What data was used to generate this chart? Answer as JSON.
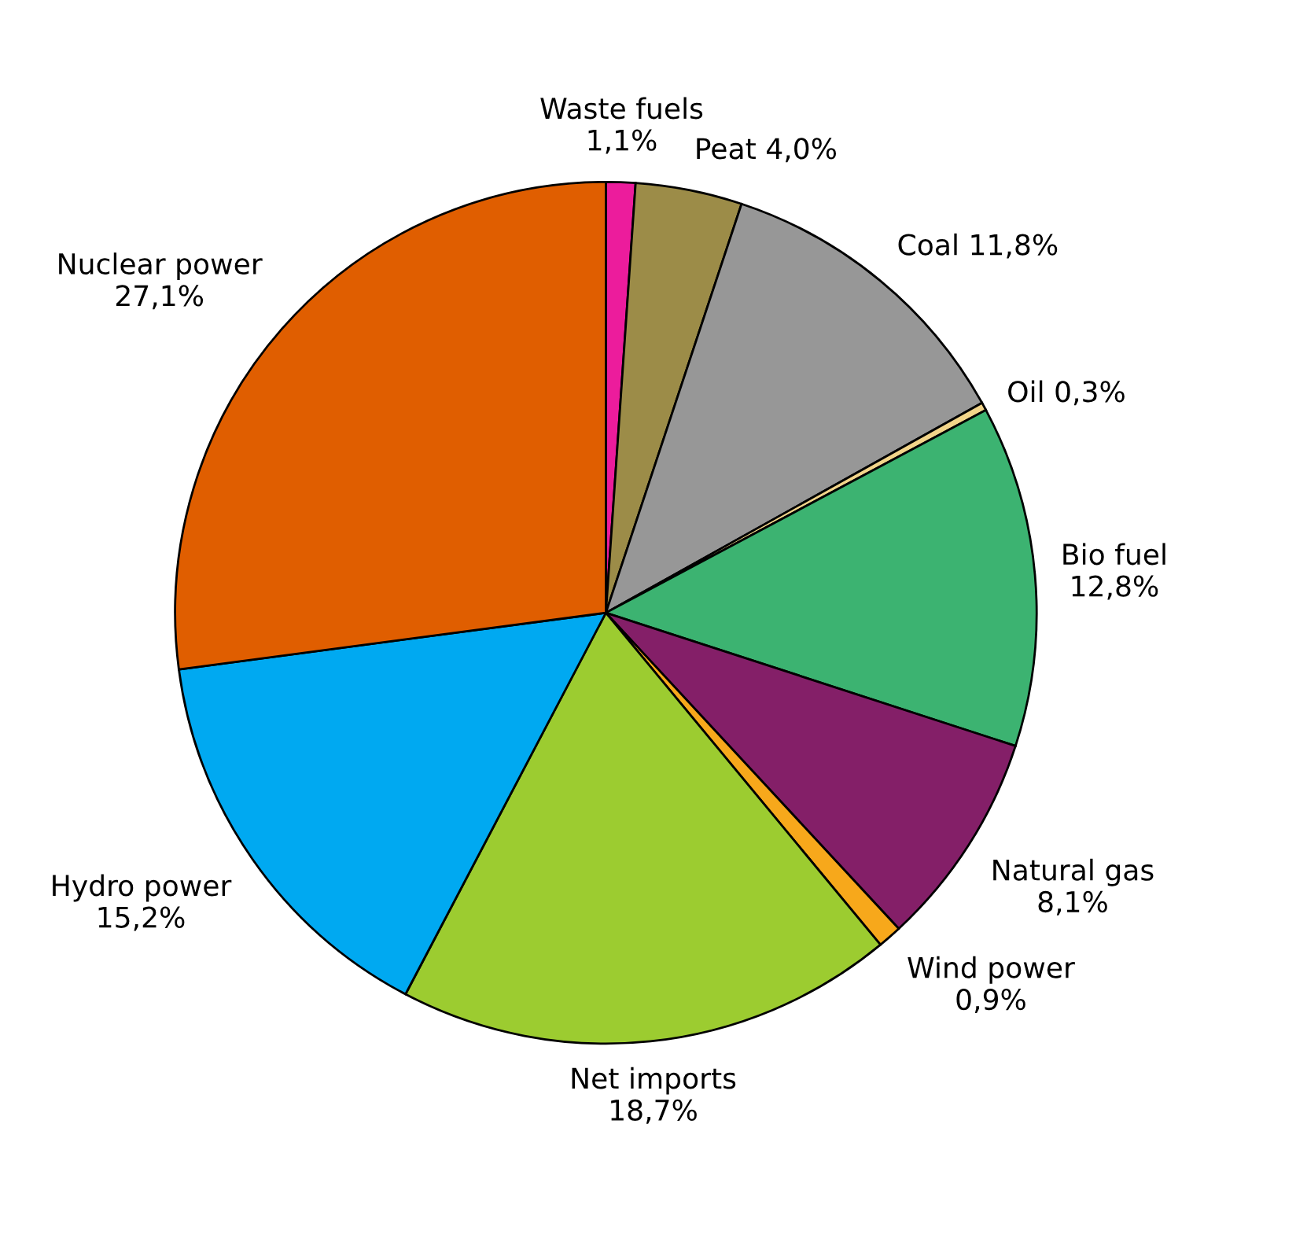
{
  "chart_data": {
    "type": "pie",
    "categories": [
      "Waste fuels",
      "Peat",
      "Coal",
      "Oil",
      "Bio fuel",
      "Natural gas",
      "Wind power",
      "Net imports",
      "Hydro power",
      "Nuclear power"
    ],
    "values": [
      1.1,
      4.0,
      11.8,
      0.3,
      12.8,
      8.1,
      0.9,
      18.7,
      15.2,
      27.1
    ],
    "value_labels": [
      "1,1%",
      "4,0%",
      "11,8%",
      "0,3%",
      "12,8%",
      "8,1%",
      "0,9%",
      "18,7%",
      "15,2%",
      "27,1%"
    ],
    "colors": [
      "#ec1c9c",
      "#9c8c48",
      "#979797",
      "#f2d58a",
      "#3cb371",
      "#841f68",
      "#f7a81b",
      "#9ccc30",
      "#00a9f1",
      "#e05e00"
    ]
  }
}
